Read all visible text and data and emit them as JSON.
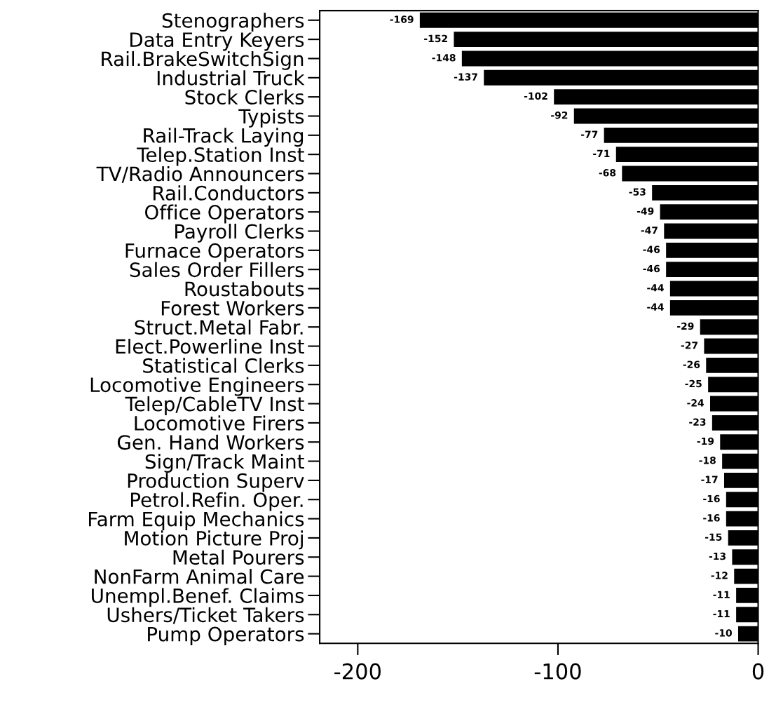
{
  "chart_data": {
    "type": "bar",
    "orientation": "horizontal",
    "categories": [
      "Stenographers",
      "Data Entry Keyers",
      "Rail.BrakeSwitchSign",
      "Industrial Truck",
      "Stock Clerks",
      "Typists",
      "Rail-Track Laying",
      "Telep.Station Inst",
      "TV/Radio Announcers",
      "Rail.Conductors",
      "Office Operators",
      "Payroll Clerks",
      "Furnace Operators",
      "Sales Order Fillers",
      "Roustabouts",
      "Forest Workers",
      "Struct.Metal Fabr.",
      "Elect.Powerline Inst",
      "Statistical Clerks",
      "Locomotive Engineers",
      "Telep/CableTV Inst",
      "Locomotive Firers",
      "Gen. Hand Workers",
      "Sign/Track Maint",
      "Production Superv",
      "Petrol.Refin. Oper.",
      "Farm Equip Mechanics",
      "Motion Picture Proj",
      "Metal Pourers",
      "NonFarm Animal Care",
      "Unempl.Benef. Claims",
      "Ushers/Ticket Takers",
      "Pump Operators"
    ],
    "values": [
      -169,
      -152,
      -148,
      -137,
      -102,
      -92,
      -77,
      -71,
      -68,
      -53,
      -49,
      -47,
      -46,
      -46,
      -44,
      -44,
      -29,
      -27,
      -26,
      -25,
      -24,
      -23,
      -19,
      -18,
      -17,
      -16,
      -16,
      -15,
      -13,
      -12,
      -11,
      -11,
      -10
    ],
    "color": "#000000",
    "xlim": [
      -219,
      0
    ],
    "xticks": [
      -200,
      -100,
      0
    ],
    "data_labels": true,
    "grid": false,
    "legend": false
  }
}
